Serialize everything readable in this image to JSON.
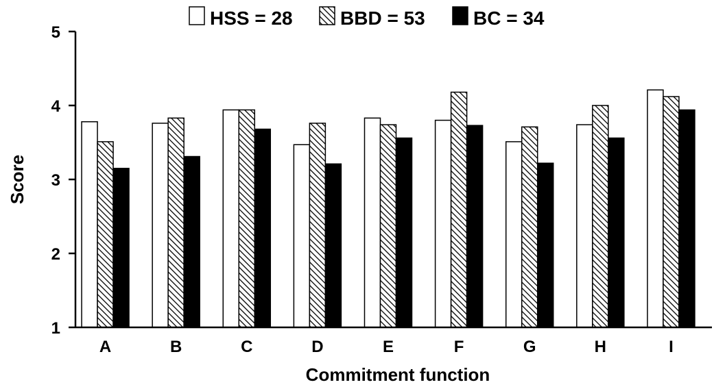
{
  "chart_data": {
    "type": "bar",
    "title": "",
    "xlabel": "Commitment function",
    "ylabel": "Score",
    "ylim": [
      1,
      5
    ],
    "yticks": [
      1,
      2,
      3,
      4,
      5
    ],
    "grid": false,
    "legend_position": "top",
    "categories": [
      "A",
      "B",
      "C",
      "D",
      "E",
      "F",
      "G",
      "H",
      "I"
    ],
    "series": [
      {
        "name": "HSS = 28",
        "fill": "white",
        "values": [
          3.78,
          3.76,
          3.94,
          3.47,
          3.83,
          3.8,
          3.51,
          3.74,
          4.21
        ]
      },
      {
        "name": "BBD = 53",
        "fill": "hatched",
        "values": [
          3.51,
          3.83,
          3.94,
          3.76,
          3.74,
          4.18,
          3.71,
          4.0,
          4.12
        ]
      },
      {
        "name": "BC = 34",
        "fill": "black",
        "values": [
          3.15,
          3.31,
          3.68,
          3.21,
          3.56,
          3.73,
          3.22,
          3.56,
          3.94
        ]
      }
    ]
  }
}
